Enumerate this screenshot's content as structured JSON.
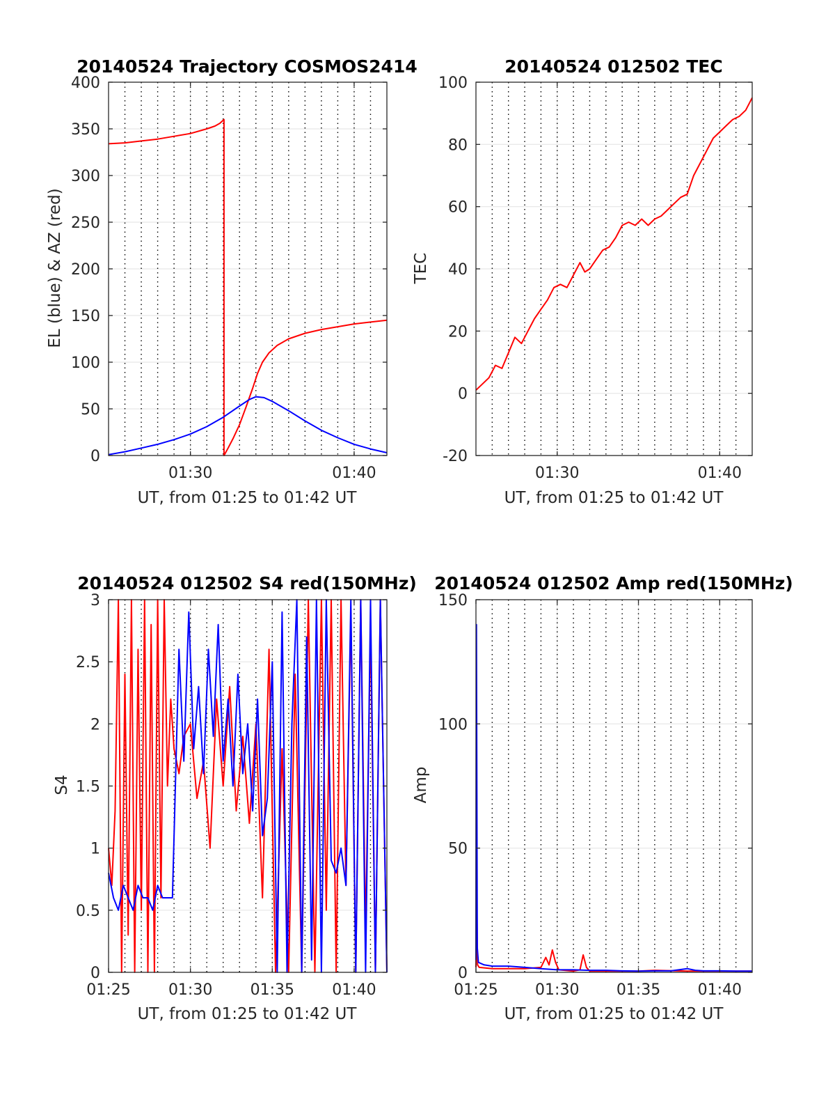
{
  "figure": {
    "background": "#ffffff"
  },
  "colors": {
    "red": "#ff0000",
    "blue": "#0000ff",
    "grid_solid": "#e6e6e6",
    "grid_dotted": "#000000",
    "axes": "#262626"
  },
  "chart_data": [
    {
      "id": "trajectory",
      "type": "line",
      "title": "20140524 Trajectory COSMOS2414",
      "xlabel": "UT, from 01:25 to 01:42 UT",
      "ylabel": "EL (blue) & AZ (red)",
      "xlim": [
        25,
        42
      ],
      "ylim": [
        0,
        400
      ],
      "yticks": [
        0,
        50,
        100,
        150,
        200,
        250,
        300,
        350,
        400
      ],
      "xticks": [
        30,
        40
      ],
      "xtick_labels": [
        "01:30",
        "01:40"
      ],
      "grid": "on",
      "series": [
        {
          "name": "AZ",
          "color": "#ff0000",
          "x": [
            25.0,
            26.0,
            27.0,
            28.0,
            29.0,
            30.0,
            31.0,
            31.5,
            31.8,
            32.05,
            32.05,
            32.3,
            32.6,
            33.0,
            33.4,
            33.8,
            34.1,
            34.4,
            34.8,
            35.3,
            36.0,
            37.0,
            38.0,
            39.0,
            40.0,
            41.0,
            42.0
          ],
          "values": [
            334,
            335,
            337,
            339,
            342,
            345,
            350,
            353,
            356,
            360,
            0,
            8,
            18,
            33,
            52,
            72,
            88,
            100,
            110,
            118,
            125,
            131,
            135,
            138,
            141,
            143,
            145
          ]
        },
        {
          "name": "EL",
          "color": "#0000ff",
          "x": [
            25.0,
            26.0,
            27.0,
            28.0,
            29.0,
            30.0,
            31.0,
            32.0,
            33.0,
            33.6,
            34.0,
            34.5,
            35.0,
            36.0,
            37.0,
            38.0,
            39.0,
            40.0,
            41.0,
            42.0
          ],
          "values": [
            1,
            4,
            8,
            12,
            17,
            23,
            31,
            41,
            53,
            60,
            63,
            62,
            58,
            48,
            37,
            27,
            19,
            12,
            7,
            3
          ]
        }
      ]
    },
    {
      "id": "tec",
      "type": "line",
      "title": "20140524 012502 TEC",
      "xlabel": "UT, from 01:25 to 01:42 UT",
      "ylabel": "TEC",
      "xlim": [
        25,
        42
      ],
      "ylim": [
        -20,
        100
      ],
      "yticks": [
        -20,
        0,
        20,
        40,
        60,
        80,
        100
      ],
      "xticks": [
        30,
        40
      ],
      "xtick_labels": [
        "01:30",
        "01:40"
      ],
      "grid": "on",
      "series": [
        {
          "name": "TEC",
          "color": "#ff0000",
          "x": [
            25.0,
            25.4,
            25.8,
            26.2,
            26.6,
            27.0,
            27.4,
            27.8,
            28.2,
            28.6,
            29.0,
            29.4,
            29.8,
            30.2,
            30.6,
            31.0,
            31.4,
            31.7,
            32.0,
            32.4,
            32.8,
            33.2,
            33.6,
            34.0,
            34.4,
            34.8,
            35.2,
            35.6,
            36.0,
            36.4,
            36.8,
            37.2,
            37.6,
            38.0,
            38.4,
            38.8,
            39.2,
            39.6,
            40.0,
            40.4,
            40.8,
            41.2,
            41.6,
            42.0
          ],
          "values": [
            1,
            3,
            5,
            9,
            8,
            13,
            18,
            16,
            20,
            24,
            27,
            30,
            34,
            35,
            34,
            38,
            42,
            39,
            40,
            43,
            46,
            47,
            50,
            54,
            55,
            54,
            56,
            54,
            56,
            57,
            59,
            61,
            63,
            64,
            70,
            74,
            78,
            82,
            84,
            86,
            88,
            89,
            91,
            95
          ]
        }
      ]
    },
    {
      "id": "s4",
      "type": "line",
      "title": "20140524 012502 S4 red(150MHz)",
      "xlabel": "UT, from 01:25 to 01:42 UT",
      "ylabel": "S4",
      "xlim": [
        25,
        42
      ],
      "ylim": [
        0,
        3
      ],
      "yticks": [
        0,
        0.5,
        1,
        1.5,
        2,
        2.5,
        3
      ],
      "ytick_labels": [
        "0",
        "0.5",
        "1",
        "1.5",
        "2",
        "2.5",
        "3"
      ],
      "xticks": [
        25,
        30,
        35,
        40
      ],
      "xtick_labels": [
        "01:25",
        "01:30",
        "01:35",
        "01:40"
      ],
      "grid": "on",
      "series": [
        {
          "name": "red",
          "color": "#ff0000",
          "x": [
            25.0,
            25.2,
            25.4,
            25.6,
            25.8,
            26.0,
            26.2,
            26.4,
            26.6,
            26.8,
            27.0,
            27.2,
            27.4,
            27.6,
            27.8,
            28.0,
            28.2,
            28.4,
            28.6,
            28.8,
            29.0,
            29.3,
            29.6,
            30.0,
            30.4,
            30.8,
            31.2,
            31.6,
            32.0,
            32.4,
            32.8,
            33.2,
            33.6,
            34.0,
            34.4,
            34.8,
            35.2,
            35.6,
            36.0,
            36.4,
            36.8,
            37.2,
            37.6,
            38.0,
            38.3,
            38.6,
            38.9,
            39.2,
            39.5,
            39.8,
            40.1,
            40.4,
            40.7,
            41.0,
            41.3,
            41.6,
            42.0
          ],
          "values": [
            1.0,
            0.7,
            1.3,
            3.0,
            0.0,
            2.4,
            0.3,
            3.0,
            0.0,
            2.6,
            0.5,
            3.0,
            0.0,
            2.8,
            0.0,
            3.0,
            0.6,
            3.0,
            1.5,
            2.2,
            1.8,
            1.6,
            1.9,
            2.0,
            1.4,
            1.7,
            1.0,
            2.2,
            1.5,
            2.3,
            1.3,
            1.9,
            1.2,
            2.0,
            0.6,
            2.6,
            0.0,
            1.8,
            0.0,
            2.4,
            0.0,
            3.0,
            0.0,
            3.0,
            0.5,
            3.0,
            0.0,
            3.0,
            0.7,
            2.9,
            0.0,
            3.0,
            0.3,
            2.8,
            0.0,
            3.0,
            0.0
          ]
        },
        {
          "name": "blue",
          "color": "#0000ff",
          "x": [
            25.0,
            25.3,
            25.6,
            25.9,
            26.2,
            26.5,
            26.8,
            27.1,
            27.4,
            27.7,
            28.0,
            28.3,
            28.6,
            28.9,
            29.1,
            29.3,
            29.6,
            29.9,
            30.2,
            30.5,
            30.8,
            31.1,
            31.4,
            31.7,
            32.0,
            32.3,
            32.6,
            32.9,
            33.2,
            33.5,
            33.8,
            34.1,
            34.4,
            34.7,
            35.0,
            35.3,
            35.6,
            35.9,
            36.2,
            36.5,
            36.8,
            37.1,
            37.4,
            37.7,
            38.0,
            38.3,
            38.6,
            38.9,
            39.2,
            39.5,
            39.8,
            40.1,
            40.4,
            40.7,
            41.0,
            41.3,
            41.6,
            42.0
          ],
          "values": [
            0.8,
            0.6,
            0.5,
            0.7,
            0.6,
            0.5,
            0.7,
            0.6,
            0.6,
            0.5,
            0.7,
            0.6,
            0.6,
            0.6,
            1.6,
            2.6,
            1.7,
            2.9,
            1.8,
            2.3,
            1.6,
            2.6,
            1.9,
            2.8,
            1.7,
            2.2,
            1.5,
            2.4,
            1.6,
            2.0,
            1.3,
            2.2,
            1.1,
            1.4,
            2.5,
            0.0,
            2.9,
            0.0,
            2.0,
            3.0,
            0.0,
            2.7,
            0.1,
            3.0,
            0.0,
            3.0,
            0.9,
            0.8,
            1.0,
            0.7,
            3.0,
            0.0,
            3.0,
            0.0,
            3.0,
            0.0,
            3.0,
            0.0
          ]
        }
      ]
    },
    {
      "id": "amp",
      "type": "line",
      "title": "20140524 012502 Amp red(150MHz)",
      "xlabel": "UT, from 01:25 to 01:42 UT",
      "ylabel": "Amp",
      "xlim": [
        25,
        42
      ],
      "ylim": [
        0,
        150
      ],
      "yticks": [
        0,
        50,
        100,
        150
      ],
      "xticks": [
        25,
        30,
        35,
        40
      ],
      "xtick_labels": [
        "01:25",
        "01:30",
        "01:35",
        "01:40"
      ],
      "grid": "on",
      "series": [
        {
          "name": "red",
          "color": "#ff0000",
          "x": [
            25.0,
            25.05,
            25.1,
            25.2,
            26.0,
            27.0,
            28.0,
            29.0,
            29.3,
            29.5,
            29.7,
            29.9,
            30.1,
            31.0,
            31.4,
            31.6,
            31.8,
            32.0,
            32.5,
            35.0,
            36.0,
            38.0,
            40.0,
            42.0
          ],
          "values": [
            2,
            30,
            3,
            2,
            1.5,
            1.5,
            1.5,
            2,
            6,
            3,
            9,
            4,
            1,
            0.5,
            1,
            7,
            2,
            0.5,
            0.5,
            0.5,
            0.8,
            0.5,
            0.5,
            0.5
          ]
        },
        {
          "name": "blue",
          "color": "#0000ff",
          "x": [
            25.0,
            25.03,
            25.08,
            25.15,
            25.5,
            26.0,
            27.0,
            28.0,
            29.0,
            30.0,
            31.0,
            32.0,
            33.0,
            34.0,
            35.0,
            36.0,
            37.0,
            38.0,
            38.5,
            39.0,
            40.0,
            41.0,
            42.0
          ],
          "values": [
            5,
            140,
            10,
            4,
            3,
            2.5,
            2.5,
            2,
            1.5,
            1,
            1,
            0.8,
            0.8,
            0.6,
            0.5,
            0.6,
            0.6,
            1.5,
            0.8,
            0.6,
            0.6,
            0.5,
            0.5
          ]
        }
      ]
    }
  ]
}
